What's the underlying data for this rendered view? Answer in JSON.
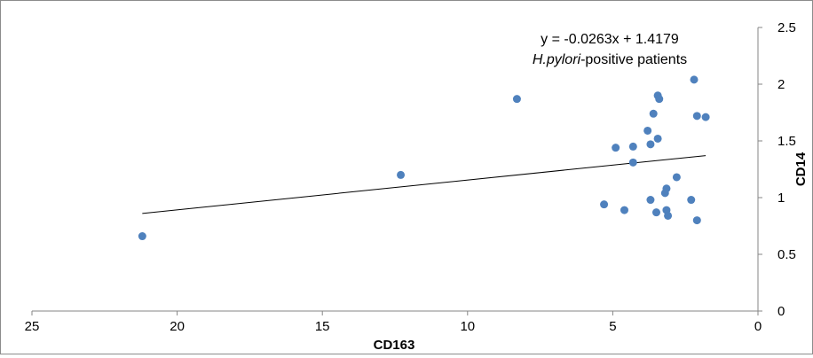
{
  "chart_data": {
    "type": "scatter",
    "title": "",
    "xlabel": "CD163",
    "ylabel": "CD14",
    "x_reversed": true,
    "xlim": [
      0,
      25
    ],
    "ylim": [
      0,
      2.5
    ],
    "x_ticks": [
      25,
      20,
      15,
      10,
      5,
      0
    ],
    "y_ticks": [
      0,
      0.5,
      1,
      1.5,
      2,
      2.5
    ],
    "x_tick_labels": [
      "25",
      "20",
      "15",
      "10",
      "5",
      "0"
    ],
    "y_tick_labels": [
      "0",
      "0.5",
      "1",
      "1.5",
      "2",
      "2.5"
    ],
    "y_axis_side": "right",
    "grid": false,
    "legend": "none",
    "marker_color": "#4f81bd",
    "trendline_color": "#000000",
    "annotation": {
      "equation": "y = -0.0263x + 1.4179",
      "group_italic": "H.pylori",
      "group_rest": "-positive patients"
    },
    "trendline": {
      "slope": -0.0263,
      "intercept": 1.4179,
      "x_range": [
        21.2,
        1.8
      ]
    },
    "series": [
      {
        "points": [
          {
            "x": 21.2,
            "y": 0.66
          },
          {
            "x": 12.3,
            "y": 1.2
          },
          {
            "x": 8.3,
            "y": 1.87
          },
          {
            "x": 5.3,
            "y": 0.94
          },
          {
            "x": 4.9,
            "y": 1.44
          },
          {
            "x": 4.6,
            "y": 0.89
          },
          {
            "x": 4.3,
            "y": 1.45
          },
          {
            "x": 4.3,
            "y": 1.31
          },
          {
            "x": 3.8,
            "y": 1.59
          },
          {
            "x": 3.7,
            "y": 1.47
          },
          {
            "x": 3.7,
            "y": 0.98
          },
          {
            "x": 3.6,
            "y": 1.74
          },
          {
            "x": 3.5,
            "y": 0.87
          },
          {
            "x": 3.45,
            "y": 1.9
          },
          {
            "x": 3.4,
            "y": 1.87
          },
          {
            "x": 3.45,
            "y": 1.52
          },
          {
            "x": 3.2,
            "y": 1.04
          },
          {
            "x": 3.15,
            "y": 1.08
          },
          {
            "x": 3.15,
            "y": 0.89
          },
          {
            "x": 3.1,
            "y": 0.84
          },
          {
            "x": 2.8,
            "y": 1.18
          },
          {
            "x": 2.3,
            "y": 0.98
          },
          {
            "x": 2.2,
            "y": 2.04
          },
          {
            "x": 2.1,
            "y": 1.72
          },
          {
            "x": 2.1,
            "y": 0.8
          },
          {
            "x": 1.8,
            "y": 1.71
          }
        ]
      }
    ]
  }
}
